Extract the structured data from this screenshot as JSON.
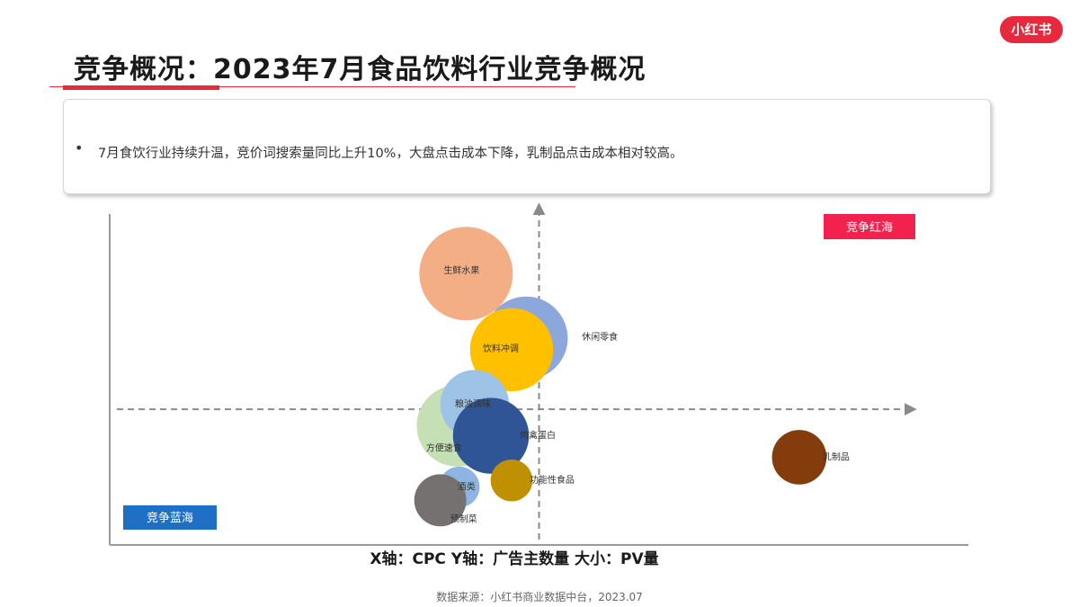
{
  "brand": {
    "logo_text": "小红书"
  },
  "page": {
    "title": "竞争概况：2023年7月食品饮料行业竞争概况",
    "summary_bullet": "•",
    "summary": "7月食饮行业持续升温，竞价词搜索量同比上升10%，大盘点击成本下降，乳制品点击成本相对较高。",
    "source": "数据来源：小红书商业数据中台，2023.07"
  },
  "chart_data": {
    "type": "scatter",
    "encoding": "bubble",
    "axis_caption": "X轴：CPC Y轴：广告主数量 大小：PV量",
    "xlim": [
      0,
      100
    ],
    "ylim": [
      0,
      100
    ],
    "grid": false,
    "x_divider": 50,
    "y_divider": 41,
    "quadrant_labels": {
      "top_right": "竞争红海",
      "bottom_left": "竞争蓝海"
    },
    "colors": {
      "accent": "#e8283c",
      "blue_label": "#1f6fc5"
    },
    "points": [
      {
        "name": "生鲜水果",
        "x": 41.5,
        "y": 82,
        "size": 100,
        "color": "#f4ae86"
      },
      {
        "name": "休闲零食",
        "x": 48.5,
        "y": 62.5,
        "size": 79,
        "color": "#8ca7dc"
      },
      {
        "name": "饮料冲调",
        "x": 46.8,
        "y": 59,
        "size": 79,
        "color": "#ffc000"
      },
      {
        "name": "方便速食",
        "x": 40.5,
        "y": 36,
        "size": 76,
        "color": "#c5e0b4"
      },
      {
        "name": "粮油调味",
        "x": 42.5,
        "y": 42.5,
        "size": 54,
        "color": "#9dc3e6"
      },
      {
        "name": "肉禽蛋白",
        "x": 44.4,
        "y": 33,
        "size": 66,
        "color": "#2f5597"
      },
      {
        "name": "乳制品",
        "x": 80.3,
        "y": 26.5,
        "size": 34,
        "color": "#843c0c"
      },
      {
        "name": "功能性食品",
        "x": 46.8,
        "y": 19.5,
        "size": 20,
        "color": "#bf9000"
      },
      {
        "name": "酒类",
        "x": 40.7,
        "y": 17.5,
        "size": 19,
        "color": "#8eb4e3"
      },
      {
        "name": "预制菜",
        "x": 38.5,
        "y": 13.5,
        "size": 31,
        "color": "#767171"
      }
    ]
  }
}
